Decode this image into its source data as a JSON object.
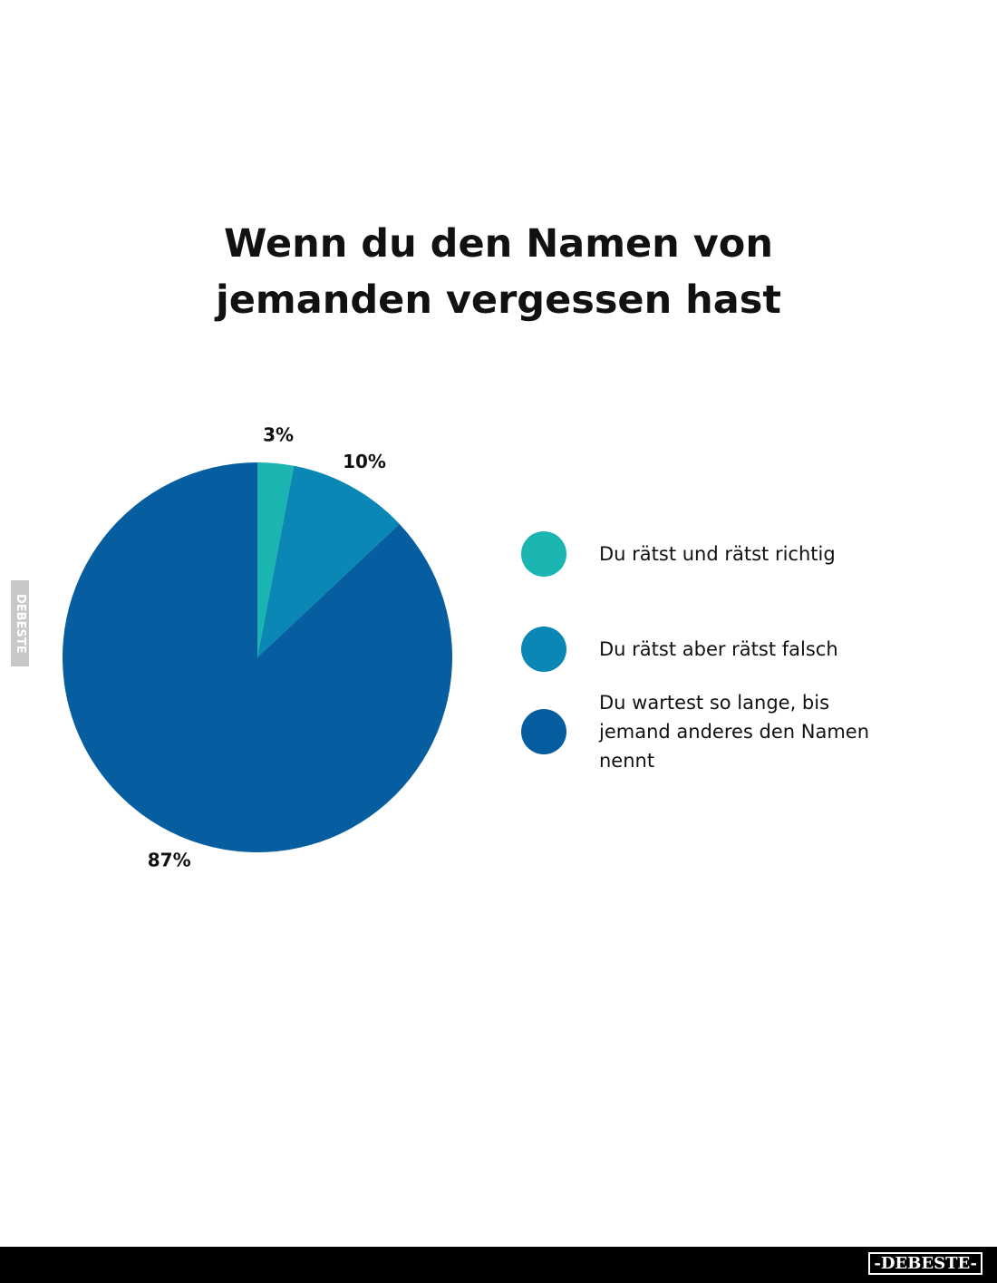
{
  "chart_data": {
    "type": "pie",
    "title": "Wenn du den Namen von jemanden vergessen hast",
    "categories": [
      "Du rätst und rätst richtig",
      "Du rätst aber rätst falsch",
      "Du wartest so lange, bis jemand anderes den Namen nennt"
    ],
    "values": [
      3,
      10,
      87
    ],
    "value_labels": [
      "3%",
      "10%",
      "87%"
    ],
    "colors": [
      "#1ab5b0",
      "#0a87b5",
      "#065ea0"
    ]
  },
  "watermark": {
    "side": "DEBESTE",
    "footer": "-DEBESTE-"
  }
}
